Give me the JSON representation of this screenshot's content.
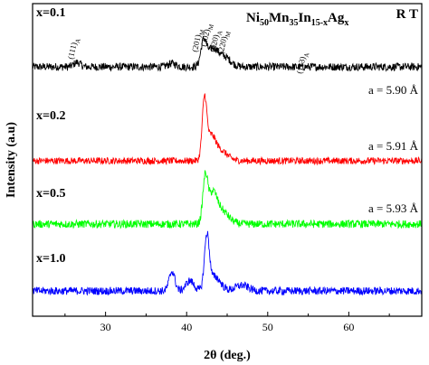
{
  "chart_data": {
    "type": "line",
    "title": "Ni50Mn35In15-xAgx",
    "title_parts": {
      "base": "Ni",
      "s1": "50",
      "m1": "Mn",
      "s2": "35",
      "m2": "In",
      "s3": "15-x",
      "m3": "Ag",
      "s4": "x"
    },
    "temperature_label": "R T",
    "xlabel": "2θ (deg.)",
    "ylabel": "Intensity (a.u)",
    "xlim": [
      21,
      69
    ],
    "x_ticks": [
      30,
      40,
      50,
      60
    ],
    "x_tick_labels": [
      "30",
      "40",
      "50",
      "60"
    ],
    "y_ticks_shown": false,
    "grid": false,
    "legend": "none",
    "series": [
      {
        "name": "x=0.1",
        "lattice": "a = 5.90 Å",
        "color": "#000000",
        "baseline": 0.8,
        "noise": 0.07,
        "peaks": [
          {
            "x": 26.5,
            "h": 0.08,
            "w": 0.4
          },
          {
            "x": 38.2,
            "h": 0.06,
            "w": 0.5
          },
          {
            "x": 42.1,
            "h": 0.45,
            "w": 0.35
          },
          {
            "x": 43.2,
            "h": 0.3,
            "w": 0.6
          },
          {
            "x": 44.6,
            "h": 0.18,
            "w": 0.8
          }
        ],
        "annotations": [
          {
            "x": 26.0,
            "main": "(111)",
            "sub": "A"
          },
          {
            "x": 41.3,
            "main": "(201)",
            "sub": "M"
          },
          {
            "x": 42.4,
            "main": "(202)",
            "sub": "M"
          },
          {
            "x": 43.5,
            "main": "(220)",
            "sub": "A"
          },
          {
            "x": 44.5,
            "main": "(220)",
            "sub": "M"
          },
          {
            "x": 54.2,
            "main": "(113)",
            "sub": "A"
          }
        ]
      },
      {
        "name": "x=0.2",
        "lattice": "a = 5.91 Å",
        "color": "#ff0000",
        "baseline": 0.55,
        "noise": 0.06,
        "peaks": [
          {
            "x": 42.2,
            "h": 1.05,
            "w": 0.28
          },
          {
            "x": 43.0,
            "h": 0.35,
            "w": 0.5
          },
          {
            "x": 44.0,
            "h": 0.2,
            "w": 0.9
          }
        ],
        "annotations": []
      },
      {
        "name": "x=0.5",
        "lattice": "a = 5.93 Å",
        "color": "#00ff00",
        "baseline": 0.6,
        "noise": 0.07,
        "peaks": [
          {
            "x": 42.3,
            "h": 0.8,
            "w": 0.3
          },
          {
            "x": 43.2,
            "h": 0.45,
            "w": 0.5
          },
          {
            "x": 44.2,
            "h": 0.25,
            "w": 0.9
          }
        ],
        "annotations": []
      },
      {
        "name": "x=1.0",
        "lattice": "",
        "color": "#0000ff",
        "baseline": 0.5,
        "noise": 0.07,
        "peaks": [
          {
            "x": 38.2,
            "h": 0.35,
            "w": 0.35
          },
          {
            "x": 40.4,
            "h": 0.18,
            "w": 0.5
          },
          {
            "x": 42.5,
            "h": 0.95,
            "w": 0.3
          },
          {
            "x": 43.5,
            "h": 0.25,
            "w": 0.7
          },
          {
            "x": 46.8,
            "h": 0.1,
            "w": 0.8
          }
        ],
        "annotations": []
      }
    ]
  }
}
